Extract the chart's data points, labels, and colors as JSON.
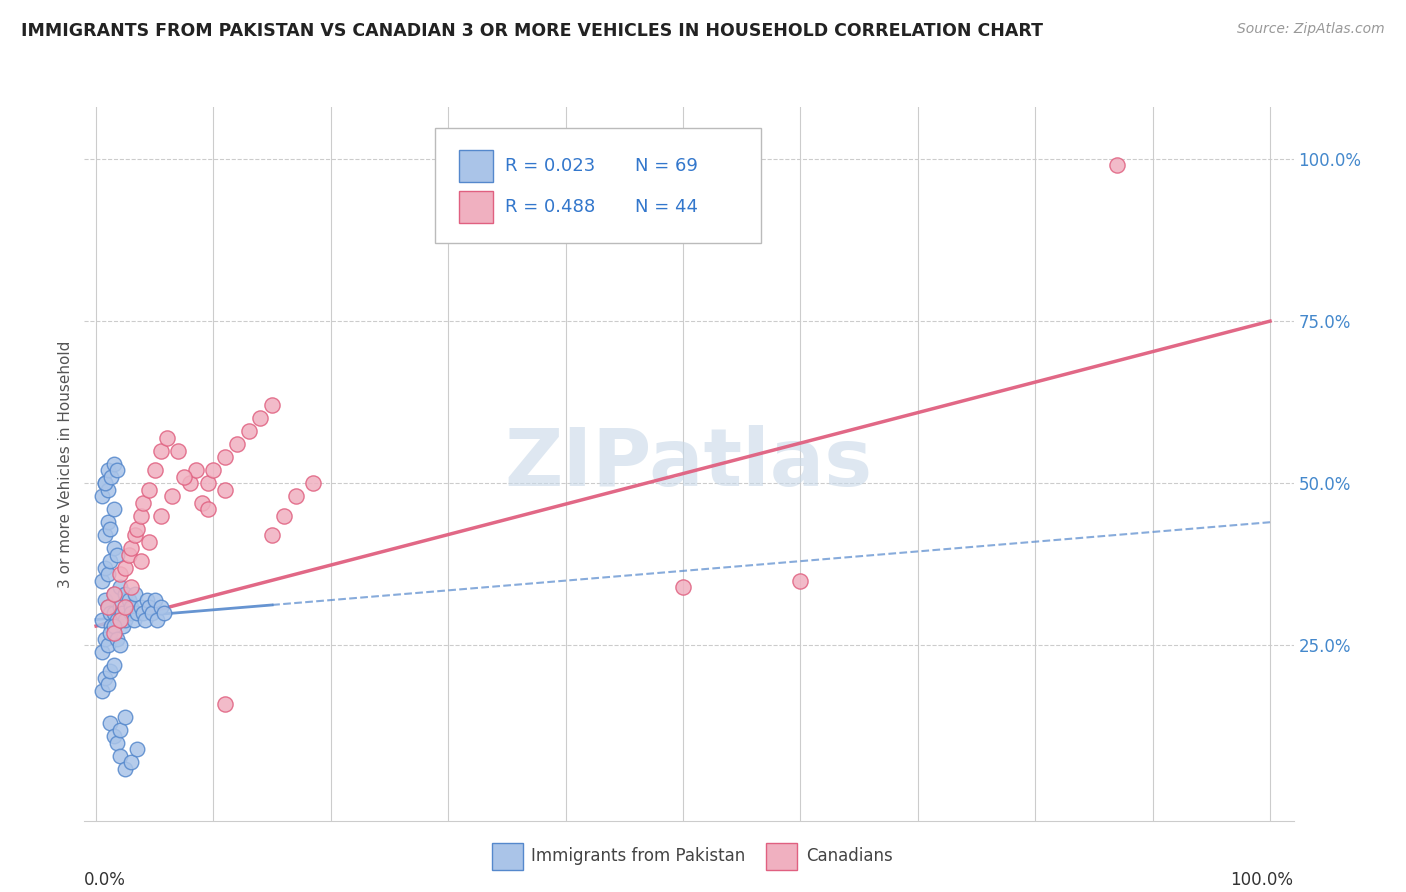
{
  "title": "IMMIGRANTS FROM PAKISTAN VS CANADIAN 3 OR MORE VEHICLES IN HOUSEHOLD CORRELATION CHART",
  "source": "Source: ZipAtlas.com",
  "ylabel": "3 or more Vehicles in Household",
  "ytick_labels": [
    "25.0%",
    "50.0%",
    "75.0%",
    "100.0%"
  ],
  "ytick_values": [
    0.25,
    0.5,
    0.75,
    1.0
  ],
  "xlim": [
    0.0,
    1.0
  ],
  "ylim": [
    0.0,
    1.05
  ],
  "legend_r1": "R = 0.023",
  "legend_n1": "N = 69",
  "legend_r2": "R = 0.488",
  "legend_n2": "N = 44",
  "color_blue": "#aac4e8",
  "color_pink": "#f0b0c0",
  "line_blue": "#5588cc",
  "line_pink": "#e06080",
  "watermark_color": "#c8d8e8",
  "series1_label": "Immigrants from Pakistan",
  "series2_label": "Canadians",
  "blue_slope": 0.15,
  "blue_intercept": 0.29,
  "pink_slope": 0.47,
  "pink_intercept": 0.28,
  "blue_x": [
    0.005,
    0.008,
    0.01,
    0.012,
    0.013,
    0.015,
    0.015,
    0.018,
    0.02,
    0.02,
    0.022,
    0.023,
    0.025,
    0.025,
    0.028,
    0.03,
    0.03,
    0.032,
    0.033,
    0.035,
    0.038,
    0.04,
    0.042,
    0.043,
    0.045,
    0.048,
    0.05,
    0.052,
    0.055,
    0.058,
    0.005,
    0.008,
    0.01,
    0.012,
    0.015,
    0.018,
    0.02,
    0.005,
    0.008,
    0.01,
    0.012,
    0.015,
    0.018,
    0.008,
    0.01,
    0.012,
    0.015,
    0.005,
    0.008,
    0.01,
    0.012,
    0.015,
    0.018,
    0.02,
    0.025,
    0.008,
    0.01,
    0.013,
    0.015,
    0.018,
    0.02,
    0.025,
    0.03,
    0.035,
    0.005,
    0.008,
    0.01,
    0.012,
    0.015
  ],
  "blue_y": [
    0.29,
    0.32,
    0.31,
    0.3,
    0.28,
    0.33,
    0.3,
    0.29,
    0.34,
    0.31,
    0.3,
    0.28,
    0.33,
    0.29,
    0.32,
    0.31,
    0.3,
    0.29,
    0.33,
    0.3,
    0.31,
    0.3,
    0.29,
    0.32,
    0.31,
    0.3,
    0.32,
    0.29,
    0.31,
    0.3,
    0.24,
    0.26,
    0.25,
    0.27,
    0.28,
    0.26,
    0.25,
    0.35,
    0.37,
    0.36,
    0.38,
    0.4,
    0.39,
    0.42,
    0.44,
    0.43,
    0.46,
    0.48,
    0.5,
    0.49,
    0.13,
    0.11,
    0.1,
    0.12,
    0.14,
    0.5,
    0.52,
    0.51,
    0.53,
    0.52,
    0.08,
    0.06,
    0.07,
    0.09,
    0.18,
    0.2,
    0.19,
    0.21,
    0.22
  ],
  "pink_x": [
    0.01,
    0.015,
    0.02,
    0.025,
    0.028,
    0.03,
    0.033,
    0.035,
    0.038,
    0.04,
    0.045,
    0.05,
    0.055,
    0.06,
    0.07,
    0.08,
    0.085,
    0.09,
    0.095,
    0.1,
    0.11,
    0.12,
    0.13,
    0.14,
    0.15,
    0.015,
    0.02,
    0.025,
    0.03,
    0.038,
    0.045,
    0.055,
    0.065,
    0.075,
    0.15,
    0.16,
    0.17,
    0.185,
    0.095,
    0.11,
    0.5,
    0.6,
    0.87,
    0.11
  ],
  "pink_y": [
    0.31,
    0.33,
    0.36,
    0.37,
    0.39,
    0.4,
    0.42,
    0.43,
    0.45,
    0.47,
    0.49,
    0.52,
    0.55,
    0.57,
    0.55,
    0.5,
    0.52,
    0.47,
    0.5,
    0.52,
    0.54,
    0.56,
    0.58,
    0.6,
    0.62,
    0.27,
    0.29,
    0.31,
    0.34,
    0.38,
    0.41,
    0.45,
    0.48,
    0.51,
    0.42,
    0.45,
    0.48,
    0.5,
    0.46,
    0.49,
    0.34,
    0.35,
    0.99,
    0.16
  ]
}
